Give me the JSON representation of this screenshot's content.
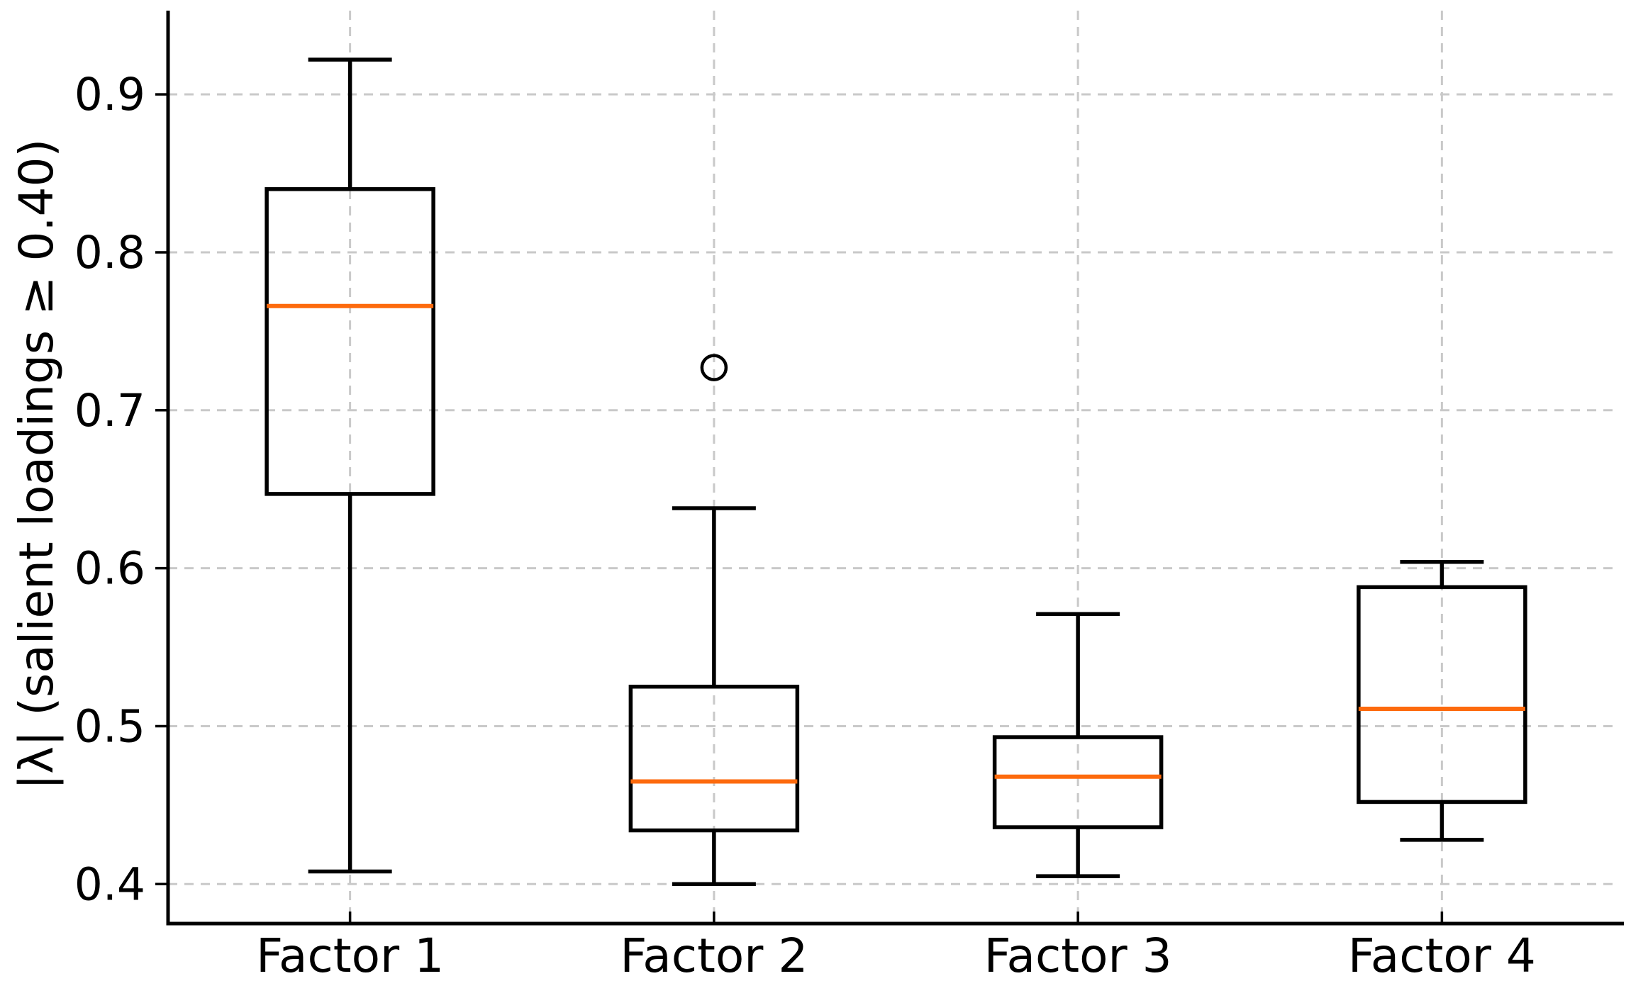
{
  "figure": {
    "background": "#ffffff"
  },
  "chart_data": {
    "type": "box",
    "title": "",
    "xlabel": "",
    "ylabel": "|λ| (salient loadings ≥ 0.40)",
    "categories": [
      "Factor 1",
      "Factor 2",
      "Factor 3",
      "Factor 4"
    ],
    "ylim": [
      0.375,
      0.953
    ],
    "yticks": [
      0.9,
      0.8,
      0.7,
      0.6,
      0.5,
      0.4
    ],
    "ytick_labels": [
      "0.9",
      "0.8",
      "0.7",
      "0.6",
      "0.5",
      "0.4"
    ],
    "grid": "both-dashed",
    "legend_position": "none",
    "series": [
      {
        "label": "Factor 1",
        "whislo": 0.408,
        "q1": 0.647,
        "med": 0.766,
        "q3": 0.84,
        "whishi": 0.922,
        "fliers": []
      },
      {
        "label": "Factor 2",
        "whislo": 0.4,
        "q1": 0.434,
        "med": 0.465,
        "q3": 0.525,
        "whishi": 0.638,
        "fliers": [
          0.727
        ]
      },
      {
        "label": "Factor 3",
        "whislo": 0.405,
        "q1": 0.436,
        "med": 0.468,
        "q3": 0.493,
        "whishi": 0.571,
        "fliers": []
      },
      {
        "label": "Factor 4",
        "whislo": 0.428,
        "q1": 0.452,
        "med": 0.511,
        "q3": 0.588,
        "whishi": 0.604,
        "fliers": []
      }
    ],
    "colors": {
      "box_edge": "#000000",
      "median": "#fd6a0d",
      "grid": "#c9c9c9",
      "spine": "#000000",
      "text": "#000000",
      "background": "#ffffff"
    }
  }
}
